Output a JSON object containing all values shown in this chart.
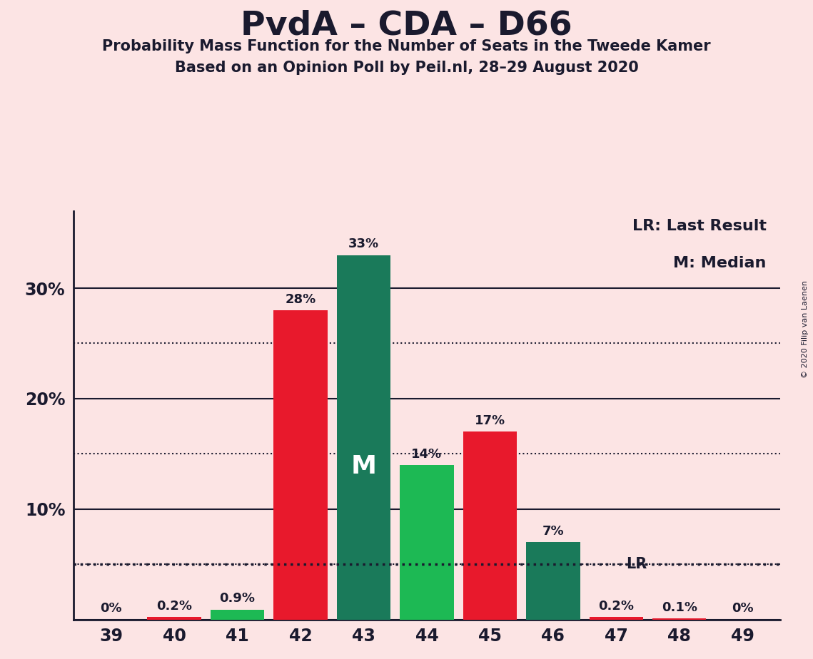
{
  "title": "PvdA – CDA – D66",
  "subtitle1": "Probability Mass Function for the Number of Seats in the Tweede Kamer",
  "subtitle2": "Based on an Opinion Poll by Peil.nl, 28–29 August 2020",
  "copyright": "© 2020 Filip van Laenen",
  "seats": [
    39,
    40,
    41,
    42,
    43,
    44,
    45,
    46,
    47,
    48,
    49
  ],
  "values": [
    0.0,
    0.002,
    0.009,
    0.28,
    0.33,
    0.14,
    0.17,
    0.07,
    0.002,
    0.001,
    0.0
  ],
  "labels": [
    "0%",
    "0.2%",
    "0.9%",
    "28%",
    "33%",
    "14%",
    "17%",
    "7%",
    "0.2%",
    "0.1%",
    "0%"
  ],
  "colors": [
    "#e8192c",
    "#e8192c",
    "#1db954",
    "#e8192c",
    "#1a7a5a",
    "#1db954",
    "#e8192c",
    "#1a7a5a",
    "#e8192c",
    "#e8192c",
    "#e8192c"
  ],
  "median_seat": 43,
  "lr_value": 0.05,
  "lr_label": "LR",
  "legend_lr": "LR: Last Result",
  "legend_m": "M: Median",
  "background_color": "#fce4e4",
  "solid_lines": [
    0.0,
    0.1,
    0.2,
    0.3
  ],
  "dotted_lines": [
    0.05,
    0.15,
    0.25
  ],
  "ylim": [
    0,
    0.37
  ],
  "xlim": [
    38.4,
    49.6
  ],
  "text_color": "#1a1a2e"
}
